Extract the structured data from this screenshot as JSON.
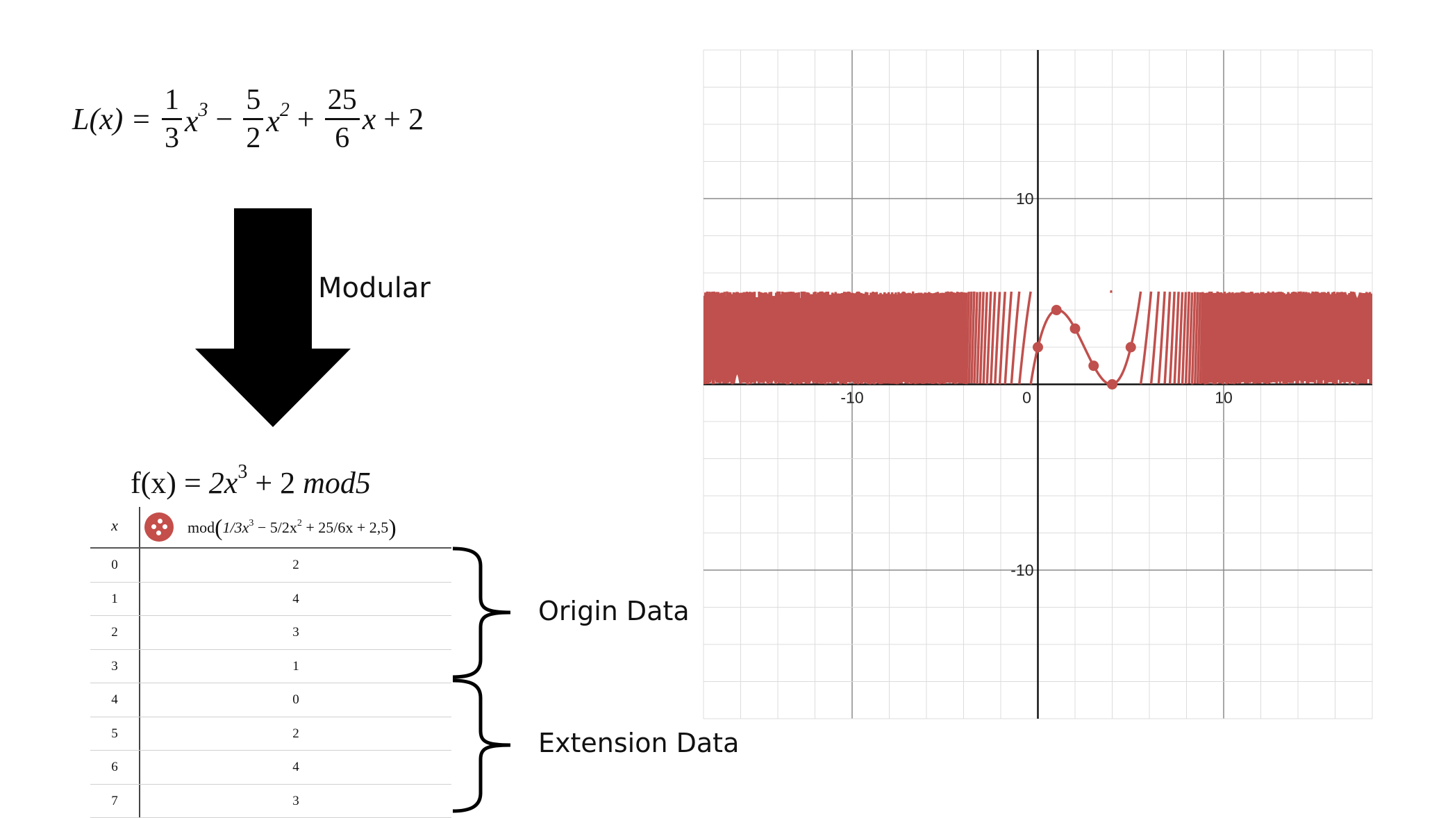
{
  "formula_l": {
    "lhs": "L(x) =",
    "t1_num": "1",
    "t1_den": "3",
    "t1_var": "x",
    "t1_exp": "3",
    "op1": "−",
    "t2_num": "5",
    "t2_den": "2",
    "t2_var": "x",
    "t2_exp": "2",
    "op2": "+",
    "t3_num": "25",
    "t3_den": "6",
    "t3_var": "x",
    "tail": "+ 2"
  },
  "modular_label": "Modular",
  "formula_f": {
    "lhs": "f(x) =",
    "base": "2x",
    "exp": "3",
    "rest": "+ 2",
    "mod": "mod5"
  },
  "table": {
    "col_x": "x",
    "expr_prefix": "mod",
    "expr_a": "1/3x",
    "expr_a_exp": "3",
    "expr_b": " − 5/2x",
    "expr_b_exp": "2",
    "expr_c": " + 25/6x + 2,5",
    "swatch_color": "#c44e4a",
    "rows": [
      {
        "x": "0",
        "v": "2"
      },
      {
        "x": "1",
        "v": "4"
      },
      {
        "x": "2",
        "v": "3"
      },
      {
        "x": "3",
        "v": "1"
      },
      {
        "x": "4",
        "v": "0"
      },
      {
        "x": "5",
        "v": "2"
      },
      {
        "x": "6",
        "v": "4"
      },
      {
        "x": "7",
        "v": "3"
      }
    ]
  },
  "braces": {
    "origin_label": "Origin Data",
    "extension_label": "Extension Data"
  },
  "graph": {
    "x_range": [
      -18,
      18
    ],
    "y_range": [
      -18,
      18
    ],
    "minor_step": 2,
    "major_step": 10,
    "x_ticks": [
      "-10",
      "0",
      "10"
    ],
    "y_ticks": [
      "10",
      "-10"
    ],
    "curve_color": "#c0504d",
    "band_y": [
      0,
      5
    ],
    "points": [
      [
        0,
        2
      ],
      [
        1,
        4
      ],
      [
        2,
        3
      ],
      [
        3,
        1
      ],
      [
        4,
        0
      ],
      [
        5,
        2
      ]
    ]
  }
}
